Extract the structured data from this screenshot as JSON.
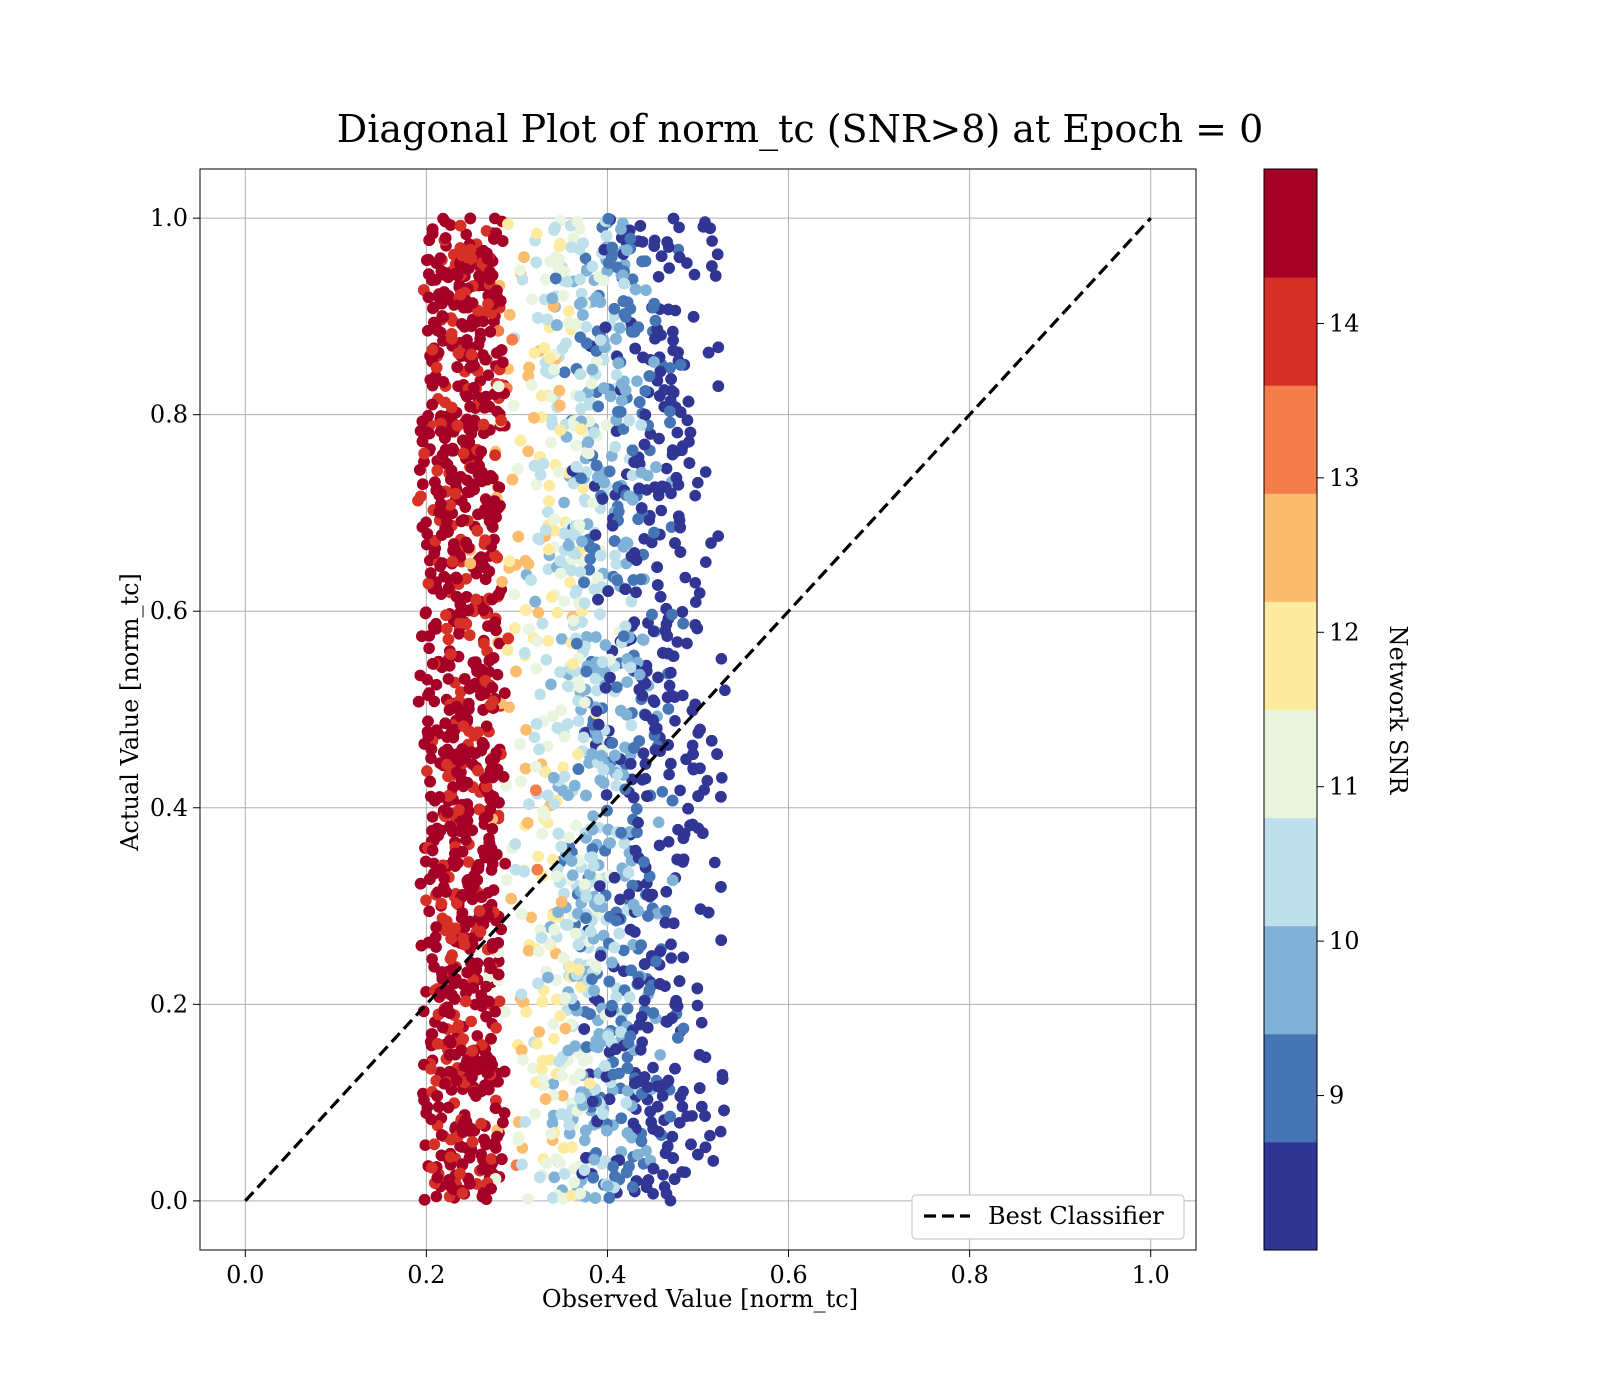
{
  "chart_data": {
    "type": "scatter",
    "title": "Diagonal Plot of norm_tc (SNR>8) at Epoch = 0",
    "xlabel": "Observed Value [norm_tc]",
    "ylabel": "Actual Value [norm_tc]",
    "xlim": [
      -0.05,
      1.05
    ],
    "ylim": [
      -0.05,
      1.05
    ],
    "x_ticks": [
      "0.0",
      "0.2",
      "0.4",
      "0.6",
      "0.8",
      "1.0"
    ],
    "y_ticks": [
      "0.0",
      "0.2",
      "0.4",
      "0.6",
      "0.8",
      "1.0"
    ],
    "grid": true,
    "legend": {
      "placement": "lower-right",
      "entries": [
        "Best Classifier"
      ]
    },
    "best_classifier_line": {
      "x": [
        0.0,
        1.0
      ],
      "y": [
        0.0,
        1.0
      ],
      "style": "dashed",
      "color": "#000000"
    },
    "colorbar": {
      "label": "Network SNR",
      "range": [
        8.0,
        15.0
      ],
      "ticks": [
        "9",
        "10",
        "11",
        "12",
        "13",
        "14"
      ],
      "colors": [
        "#313695",
        "#4575b4",
        "#7fb2d6",
        "#bde0eb",
        "#eaf5df",
        "#fdec9f",
        "#fcbc6e",
        "#f47d4b",
        "#d73027",
        "#a50026"
      ]
    },
    "scatter_description": {
      "x_range": [
        0.18,
        0.53
      ],
      "y_range": [
        0.0,
        1.0
      ],
      "dense_high_snr_band_x": [
        0.2,
        0.28
      ],
      "color_by": "Network SNR"
    }
  }
}
